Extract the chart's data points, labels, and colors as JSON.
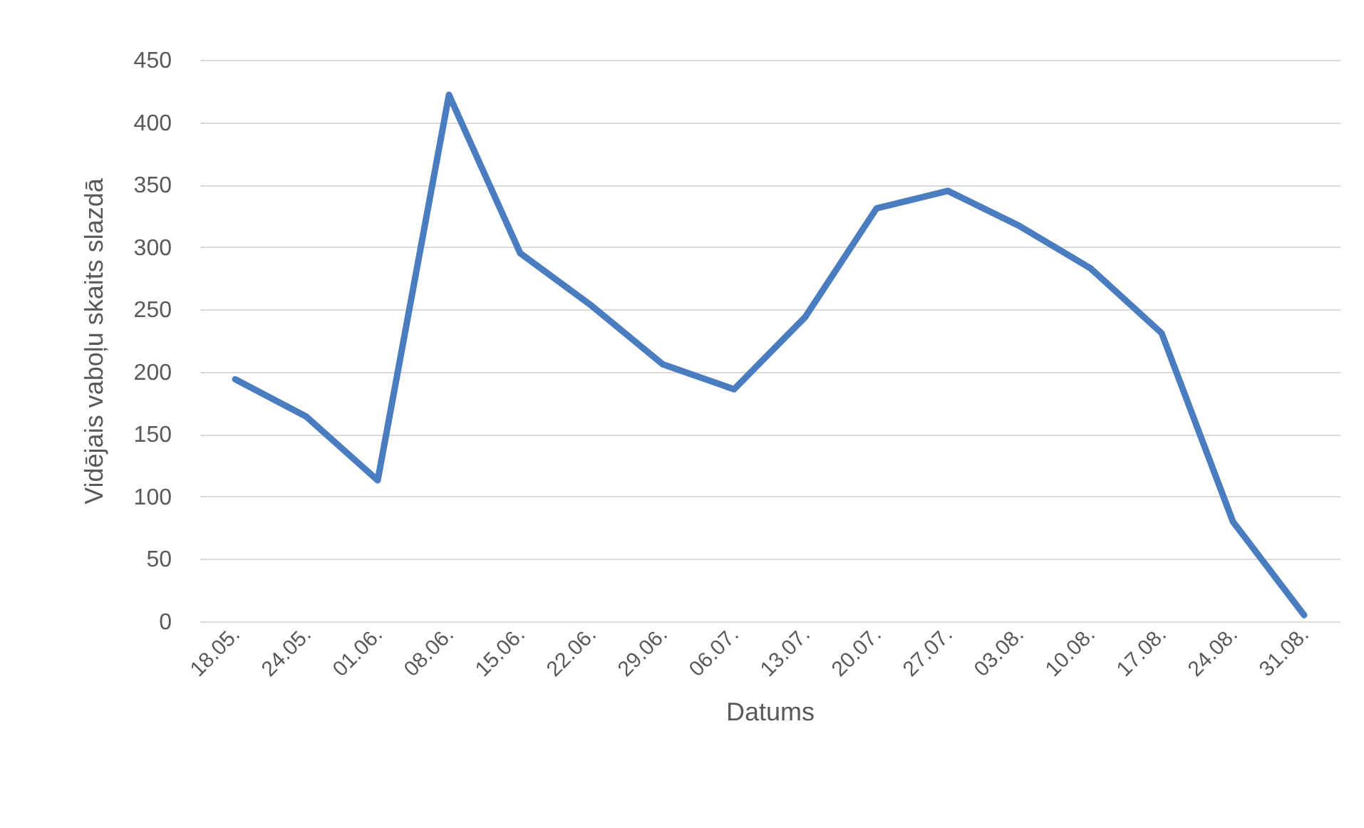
{
  "chart_data": {
    "type": "line",
    "xlabel": "Datums",
    "ylabel": "Vidējais vaboļu skaits slazdā",
    "categories": [
      "18.05.",
      "24.05.",
      "01.06.",
      "08.06.",
      "15.06.",
      "22.06.",
      "29.06.",
      "06.07.",
      "13.07.",
      "20.07.",
      "27.07.",
      "03.08.",
      "10.08.",
      "17.08.",
      "24.08.",
      "31.08."
    ],
    "series": [
      {
        "color": "#4a7dbf",
        "values": [
          194,
          164,
          113,
          422,
          295,
          253,
          206,
          186,
          244,
          331,
          345,
          317,
          283,
          231,
          80,
          5
        ]
      }
    ],
    "ylim": [
      0,
      450
    ],
    "yticks": [
      0,
      50,
      100,
      150,
      200,
      250,
      300,
      350,
      400,
      450
    ],
    "grid": "y",
    "line_style": "solid"
  }
}
